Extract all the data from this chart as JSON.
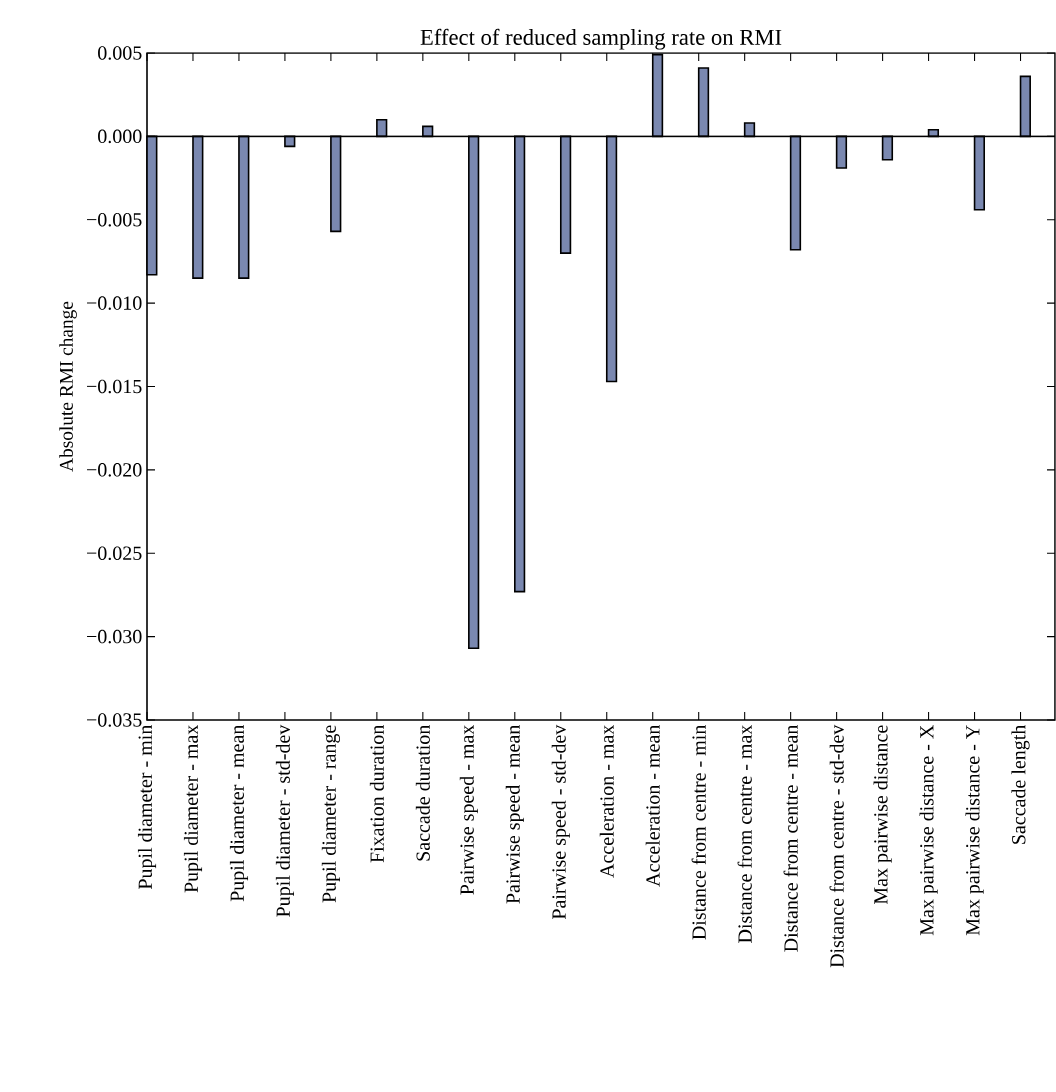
{
  "chart_data": {
    "type": "bar",
    "title": "Effect of reduced sampling rate on RMI",
    "ylabel": "Absolute RMI change",
    "categories": [
      "Pupil diameter - min",
      "Pupil diameter - max",
      "Pupil diameter - mean",
      "Pupil diameter - std-dev",
      "Pupil diameter - range",
      "Fixation duration",
      "Saccade duration",
      "Pairwise speed - max",
      "Pairwise speed - mean",
      "Pairwise speed - std-dev",
      "Acceleration - max",
      "Acceleration - mean",
      "Distance from centre - min",
      "Distance from centre - max",
      "Distance from centre - mean",
      "Distance from centre - std-dev",
      "Max pairwise distance",
      "Max pairwise distance - X",
      "Max pairwise distance - Y",
      "Saccade length"
    ],
    "values": [
      -0.0083,
      -0.0085,
      -0.0085,
      -0.0006,
      -0.0057,
      0.001,
      0.0006,
      -0.0307,
      -0.0273,
      -0.007,
      -0.0147,
      0.0049,
      0.0041,
      0.0008,
      -0.0068,
      -0.0019,
      -0.0014,
      0.0004,
      -0.0044,
      0.0036
    ],
    "color": "#7a88b0",
    "ylim": [
      -0.035,
      0.005
    ],
    "yticks": [
      {
        "value": -0.035,
        "label": "−0.035"
      },
      {
        "value": -0.03,
        "label": "−0.030"
      },
      {
        "value": -0.025,
        "label": "−0.025"
      },
      {
        "value": -0.02,
        "label": "−0.020"
      },
      {
        "value": -0.015,
        "label": "−0.015"
      },
      {
        "value": -0.01,
        "label": "−0.010"
      },
      {
        "value": -0.005,
        "label": "−0.005"
      },
      {
        "value": 0,
        "label": "0.000"
      },
      {
        "value": 0.005,
        "label": "0.005"
      }
    ],
    "ref_lines": [
      {
        "axis": "y",
        "value": 0,
        "color": "#000000"
      }
    ]
  }
}
